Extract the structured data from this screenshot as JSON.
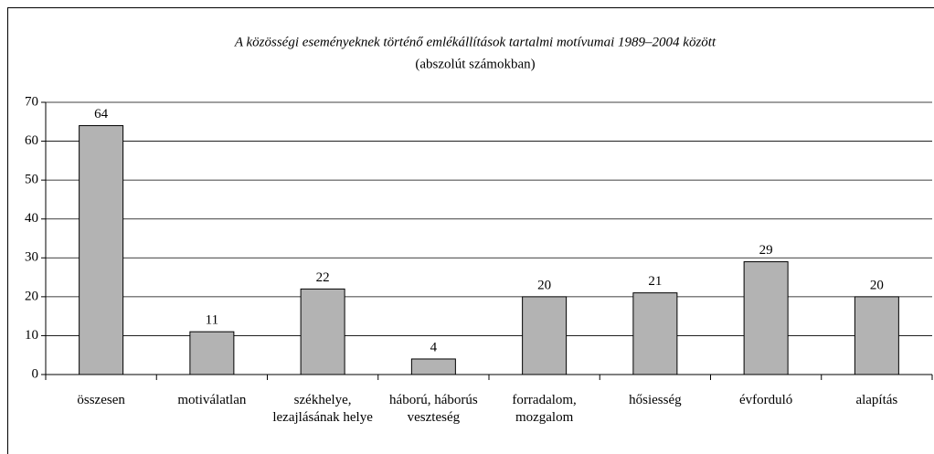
{
  "chart_data": {
    "type": "bar",
    "title": "A közösségi eseményeknek történő emlékállítások tartalmi motívumai 1989–2004 között",
    "subtitle": "(abszolút számokban)",
    "categories": [
      "összesen",
      "motiválatlan",
      "székhelye, lezajlásának helye",
      "háború, háborús veszteség",
      "forradalom, mozgalom",
      "hősiesség",
      "évforduló",
      "alapítás"
    ],
    "values": [
      64,
      11,
      22,
      4,
      20,
      21,
      29,
      20
    ],
    "color": "#b3b3b3",
    "ylim": [
      0,
      70
    ],
    "yticks": [
      0,
      10,
      20,
      30,
      40,
      50,
      60,
      70
    ],
    "grid": true
  }
}
